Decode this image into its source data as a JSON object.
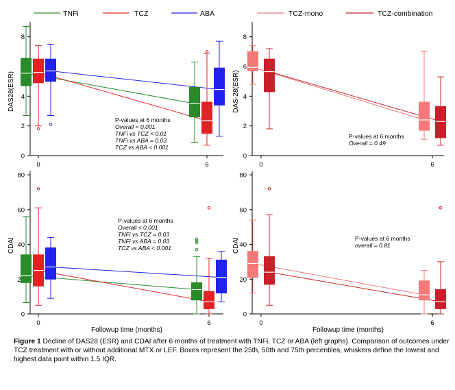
{
  "colors": {
    "TNFi": "#2a8a2a",
    "TCZ": "#e02424",
    "ABA": "#2222ee",
    "TCZ_mono": "#f47a7a",
    "TCZ_comb": "#c8202a"
  },
  "legend_left": [
    "TNFi",
    "TCZ",
    "ABA"
  ],
  "legend_right": [
    "TCZ-mono",
    "TCZ-combination"
  ],
  "caption": {
    "label": "Figure 1",
    "text": " Decline of DAS28 (ESR) and CDAI after 6 months of treatment with TNFi, TCZ or ABA (left graphs). Comparison of outcomes under TCZ treatment with or without additional MTX or LEF. Boxes represent the 25th, 50th and 75th percentiles, whiskers define the lowest and highest data point within 1.5 IQR."
  },
  "chart_data": [
    {
      "id": "das28-left",
      "type": "box",
      "ylabel": "DAS28(ESR)",
      "xlabel": "",
      "ylim": [
        0,
        9
      ],
      "yticks": [
        0,
        2,
        4,
        6,
        8
      ],
      "xticks": [
        "0",
        "6"
      ],
      "annotation": [
        "P-values at 6 months",
        "Overall < 0.001",
        "TNFi vs TCZ < 0.01",
        "TNFi vs ABA = 0.03",
        "TCZ vs ABA < 0.001"
      ],
      "series": [
        {
          "name": "TNFi",
          "color_key": "TNFi",
          "median_trend": [
            5.55,
            3.5
          ],
          "boxes": [
            {
              "time": 0,
              "min": 2.7,
              "q1": 4.7,
              "median": 5.55,
              "q3": 6.55,
              "max": 8.7,
              "outliers": []
            },
            {
              "time": 6,
              "min": 0.9,
              "q1": 2.6,
              "median": 3.5,
              "q3": 4.6,
              "max": 6.3,
              "outliers": []
            }
          ]
        },
        {
          "name": "TCZ",
          "color_key": "TCZ",
          "median_trend": [
            5.6,
            2.35
          ],
          "boxes": [
            {
              "time": 0,
              "min": 2.0,
              "q1": 4.9,
              "median": 5.6,
              "q3": 6.5,
              "max": 7.4,
              "outliers": [
                1.8
              ]
            },
            {
              "time": 6,
              "min": 0.7,
              "q1": 1.5,
              "median": 2.35,
              "q3": 3.6,
              "max": 6.9,
              "outliers": [
                7.0
              ]
            }
          ]
        },
        {
          "name": "ABA",
          "color_key": "ABA",
          "median_trend": [
            5.7,
            4.45
          ],
          "boxes": [
            {
              "time": 0,
              "min": 2.7,
              "q1": 5.0,
              "median": 5.7,
              "q3": 6.5,
              "max": 7.5,
              "outliers": [
                2.1
              ]
            },
            {
              "time": 6,
              "min": 1.3,
              "q1": 3.4,
              "median": 4.45,
              "q3": 5.9,
              "max": 7.7,
              "outliers": []
            }
          ]
        }
      ]
    },
    {
      "id": "das28-right",
      "type": "box",
      "ylabel": "DAS-28(ESR)",
      "xlabel": "",
      "ylim": [
        0,
        9
      ],
      "yticks": [
        0,
        2,
        4,
        6,
        8
      ],
      "xticks": [
        "0",
        "6"
      ],
      "annotation": [
        "P-values at 6 months",
        "Overall = 0.49"
      ],
      "series": [
        {
          "name": "TCZ-mono",
          "color_key": "TCZ_mono",
          "median_trend": [
            5.95,
            2.4
          ],
          "boxes": [
            {
              "time": 0,
              "min": 4.8,
              "q1": 5.7,
              "median": 5.95,
              "q3": 7.0,
              "max": 7.4,
              "outliers": []
            },
            {
              "time": 6,
              "min": 1.1,
              "q1": 1.7,
              "median": 2.4,
              "q3": 3.6,
              "max": 7.0,
              "outliers": []
            }
          ]
        },
        {
          "name": "TCZ-combination",
          "color_key": "TCZ_comb",
          "median_trend": [
            5.65,
            2.3
          ],
          "boxes": [
            {
              "time": 0,
              "min": 1.8,
              "q1": 4.3,
              "median": 5.65,
              "q3": 6.5,
              "max": 7.2,
              "outliers": []
            },
            {
              "time": 6,
              "min": 0.7,
              "q1": 1.2,
              "median": 2.3,
              "q3": 3.3,
              "max": 5.3,
              "outliers": []
            }
          ]
        }
      ]
    },
    {
      "id": "cdai-left",
      "type": "box",
      "ylabel": "CDAI",
      "xlabel": "Followup time (months)",
      "ylim": [
        0,
        82
      ],
      "yticks": [
        0,
        20,
        40,
        60,
        80
      ],
      "xticks": [
        "0",
        "6"
      ],
      "annotation": [
        "P-values at 6 months",
        "Overall < 0.001",
        "TNFi vs TCZ = 0.03",
        "TNFi vs ABA = 0.03",
        "TCZ vs ABA < 0.001"
      ],
      "series": [
        {
          "name": "TNFi",
          "color_key": "TNFi",
          "median_trend": [
            22,
            14
          ],
          "boxes": [
            {
              "time": 0,
              "min": 6.5,
              "q1": 18,
              "median": 22,
              "q3": 34,
              "max": 56,
              "outliers": []
            },
            {
              "time": 6,
              "min": 0,
              "q1": 8,
              "median": 14,
              "q3": 18,
              "max": 33,
              "outliers": [
                37,
                41,
                42,
                43
              ]
            }
          ]
        },
        {
          "name": "TCZ",
          "color_key": "TCZ",
          "median_trend": [
            25,
            7
          ],
          "boxes": [
            {
              "time": 0,
              "min": 5,
              "q1": 16,
              "median": 25,
              "q3": 34,
              "max": 61,
              "outliers": [
                72
              ]
            },
            {
              "time": 6,
              "min": 0,
              "q1": 3,
              "median": 7,
              "q3": 13,
              "max": 32,
              "outliers": [
                61
              ]
            }
          ]
        },
        {
          "name": "ABA",
          "color_key": "ABA",
          "median_trend": [
            27,
            21
          ],
          "boxes": [
            {
              "time": 0,
              "min": 9,
              "q1": 20,
              "median": 27,
              "q3": 38,
              "max": 44,
              "outliers": []
            },
            {
              "time": 6,
              "min": 7,
              "q1": 12,
              "median": 21,
              "q3": 31,
              "max": 36,
              "outliers": []
            }
          ]
        }
      ]
    },
    {
      "id": "cdai-right",
      "type": "box",
      "ylabel": "CDAI",
      "xlabel": "Followup time (months)",
      "ylim": [
        0,
        82
      ],
      "yticks": [
        0,
        20,
        40,
        60,
        80
      ],
      "xticks": [
        "0",
        "6"
      ],
      "annotation": [
        "P-values at 6 months",
        "overall = 0.81"
      ],
      "series": [
        {
          "name": "TCZ-mono",
          "color_key": "TCZ_mono",
          "median_trend": [
            29,
            11
          ],
          "boxes": [
            {
              "time": 0,
              "min": 12,
              "q1": 21,
              "median": 29,
              "q3": 36,
              "max": 54,
              "outliers": []
            },
            {
              "time": 6,
              "min": 0,
              "q1": 8,
              "median": 11,
              "q3": 19,
              "max": 25,
              "outliers": []
            }
          ]
        },
        {
          "name": "TCZ-combination",
          "color_key": "TCZ_comb",
          "median_trend": [
            24,
            7
          ],
          "boxes": [
            {
              "time": 0,
              "min": 5,
              "q1": 17,
              "median": 24,
              "q3": 33,
              "max": 57,
              "outliers": [
                72
              ]
            },
            {
              "time": 6,
              "min": 0,
              "q1": 3,
              "median": 7,
              "q3": 14,
              "max": 30,
              "outliers": [
                61
              ]
            }
          ]
        }
      ]
    }
  ]
}
